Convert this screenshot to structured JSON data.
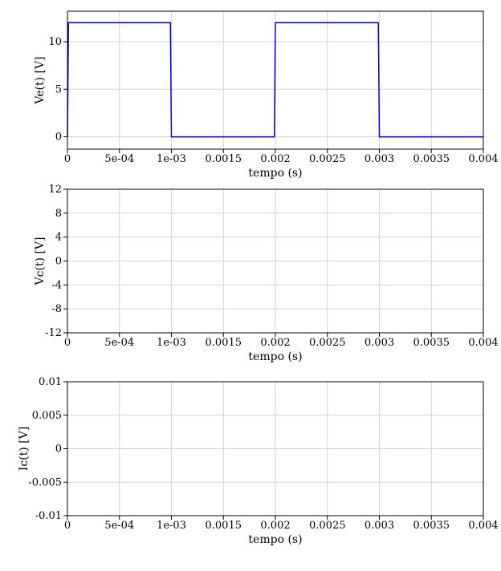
{
  "chart_data": [
    {
      "type": "line",
      "xlabel": "tempo (s)",
      "ylabel": "Ve(t) [V]",
      "xlim": [
        0,
        0.004
      ],
      "ylim": [
        -1.3,
        13.2
      ],
      "grid": true,
      "x_ticks": [
        0,
        0.0005,
        0.001,
        0.0015,
        0.002,
        0.0025,
        0.003,
        0.0035,
        0.004
      ],
      "x_tick_labels": [
        "0",
        "5e-04",
        "1e-03",
        "0.0015",
        "0.002",
        "0.0025",
        "0.003",
        "0.0035",
        "0.004"
      ],
      "y_ticks": [
        0,
        5,
        10
      ],
      "y_tick_labels": [
        "0",
        "5",
        "10"
      ],
      "series": [
        {
          "color": "#0000ff",
          "x": [
            0,
            1e-05,
            0.00099,
            0.001,
            0.00199,
            0.002,
            0.00299,
            0.003,
            0.004
          ],
          "y": [
            0,
            12,
            12,
            0,
            0,
            12,
            12,
            0,
            0
          ]
        }
      ]
    },
    {
      "type": "line",
      "xlabel": "tempo (s)",
      "ylabel": "Vc(t) [V]",
      "xlim": [
        0,
        0.004
      ],
      "ylim": [
        -12,
        12
      ],
      "grid": true,
      "x_ticks": [
        0,
        0.0005,
        0.001,
        0.0015,
        0.002,
        0.0025,
        0.003,
        0.0035,
        0.004
      ],
      "x_tick_labels": [
        "0",
        "5e-04",
        "1e-03",
        "0.0015",
        "0.002",
        "0.0025",
        "0.003",
        "0.0035",
        "0.004"
      ],
      "y_ticks": [
        -12,
        -8,
        -4,
        0,
        4,
        8,
        12
      ],
      "y_tick_labels": [
        "-12",
        "-8",
        "-4",
        "0",
        "4",
        "8",
        "12"
      ],
      "series": []
    },
    {
      "type": "line",
      "xlabel": "tempo (s)",
      "ylabel": "Ic(t) [V]",
      "xlim": [
        0,
        0.004
      ],
      "ylim": [
        -0.01,
        0.01
      ],
      "grid": true,
      "x_ticks": [
        0,
        0.0005,
        0.001,
        0.0015,
        0.002,
        0.0025,
        0.003,
        0.0035,
        0.004
      ],
      "x_tick_labels": [
        "0",
        "5e-04",
        "1e-03",
        "0.0015",
        "0.002",
        "0.0025",
        "0.003",
        "0.0035",
        "0.004"
      ],
      "y_ticks": [
        -0.01,
        -0.005,
        0,
        0.005,
        0.01
      ],
      "y_tick_labels": [
        "-0.01",
        "-0.005",
        "0",
        "0.005",
        "0.01"
      ],
      "series": []
    }
  ]
}
